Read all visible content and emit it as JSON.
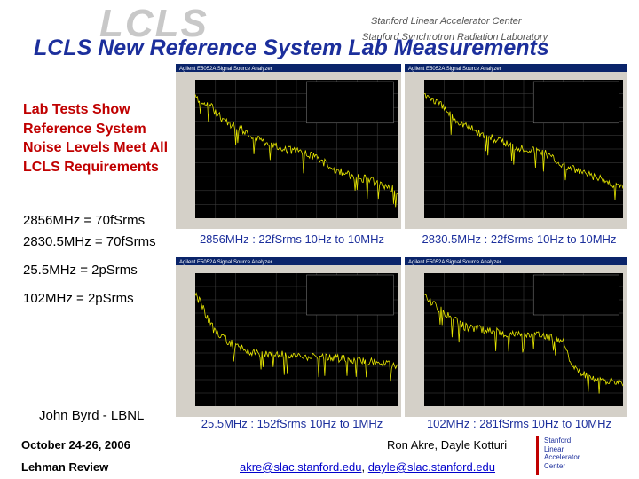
{
  "header": {
    "logo": "LCLS",
    "org1": "Stanford Linear Accelerator Center",
    "org2": "Stanford Synchrotron Radiation Laboratory",
    "title": "LCLS New Reference System Lab Measurements"
  },
  "lab_note": {
    "lines": [
      "Lab Tests Show",
      "Reference System",
      "Noise Levels Meet All",
      "LCLS Requirements"
    ]
  },
  "requirements": [
    "2856MHz = 70fSrms",
    "2830.5MHz = 70fSrms",
    "25.5MHz = 2pSrms",
    "102MHz = 2pSrms"
  ],
  "presenter": "John Byrd - LBNL",
  "panels": [
    {
      "window_title": "Agilent E5052A Signal Source Analyzer",
      "caption": "2856MHz : 22fSrms 10Hz to 10MHz"
    },
    {
      "window_title": "Agilent E5052A Signal Source Analyzer",
      "caption": "2830.5MHz : 22fSrms 10Hz to 10MHz"
    },
    {
      "window_title": "Agilent E5052A Signal Source Analyzer",
      "caption": "25.5MHz : 152fSrms 10Hz to 1MHz"
    },
    {
      "window_title": "Agilent E5052A Signal Source Analyzer",
      "caption": "102MHz : 281fSrms 10Hz to 10MHz"
    }
  ],
  "footer": {
    "date": "October 24-26, 2006",
    "event": "Lehman Review",
    "authors": "Ron Akre, Dayle Kotturi",
    "email1": "akre@slac.stanford.edu",
    "separator": ", ",
    "email2": "dayle@slac.stanford.edu",
    "logo_lines": [
      "Stanford",
      "Linear",
      "Accelerator",
      "Center"
    ]
  }
}
